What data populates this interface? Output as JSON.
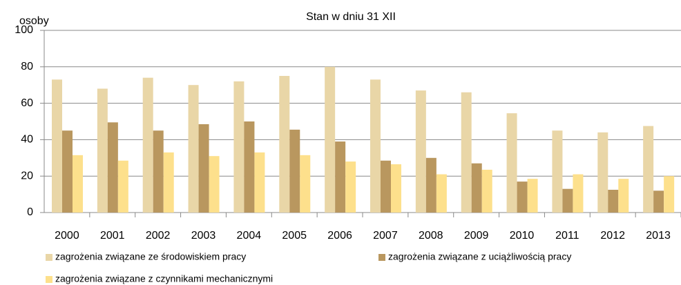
{
  "chart_data": {
    "type": "bar",
    "subtitle": "Stan w dniu 31 XII",
    "y_label": "osoby",
    "categories": [
      "2000",
      "2001",
      "2002",
      "2003",
      "2004",
      "2005",
      "2006",
      "2007",
      "2008",
      "2009",
      "2010",
      "2011",
      "2012",
      "2013"
    ],
    "series": [
      {
        "name": "zagrożenia związane ze środowiskiem pracy",
        "color": "#e9d6a7",
        "values": [
          73,
          68,
          74,
          70,
          72,
          75,
          80,
          73,
          67,
          66,
          54.5,
          45,
          44,
          47.5
        ]
      },
      {
        "name": "zagrożenia związane z uciążliwością pracy",
        "color": "#b9975f",
        "values": [
          45,
          49.5,
          45,
          48.5,
          50,
          45.5,
          39,
          28.5,
          30,
          27,
          17,
          13,
          12.5,
          12
        ]
      },
      {
        "name": "zagrożenia związane z czynnikami mechanicznymi",
        "color": "#fde08c",
        "values": [
          31.5,
          28.5,
          33,
          31,
          33,
          31.5,
          28,
          26.5,
          21,
          23.5,
          18.5,
          21,
          18.5,
          20
        ]
      }
    ],
    "ylim": [
      0,
      100
    ],
    "yticks": [
      0,
      20,
      40,
      60,
      80,
      100
    ],
    "grid": true,
    "legend": "bottom"
  }
}
